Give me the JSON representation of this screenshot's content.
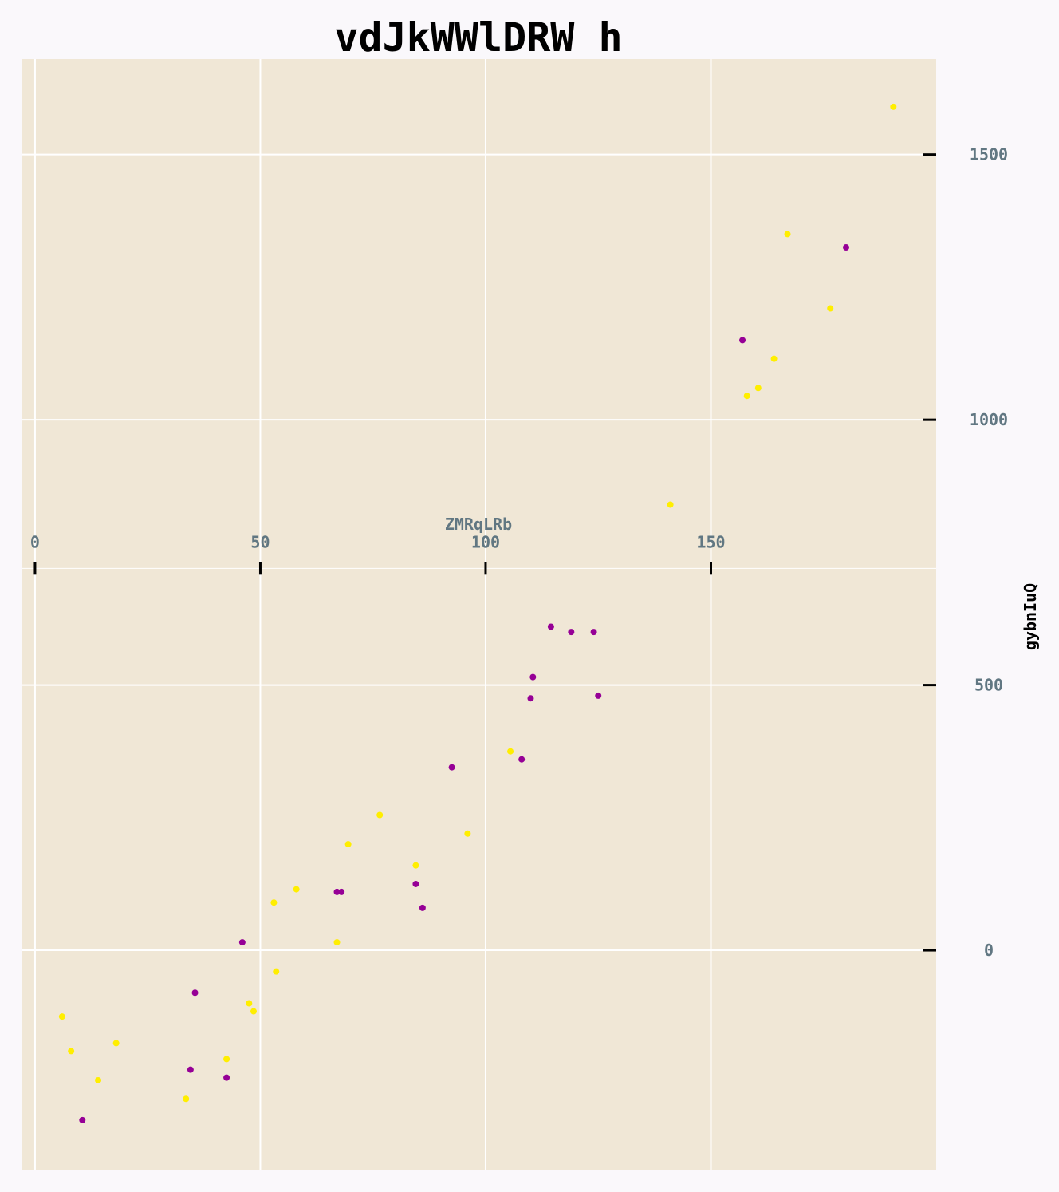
{
  "chart_data": {
    "type": "scatter",
    "title": "vdJkWWlDRW h",
    "xlabel": "ZMRqLRb",
    "ylabel": "gybnIuQ",
    "xlim": [
      -3,
      200
    ],
    "ylim": [
      -415,
      1680
    ],
    "x_ticks": [
      0,
      50,
      100,
      150
    ],
    "y_ticks": [
      0,
      500,
      1000,
      1500
    ],
    "x_axis_position_value": 720,
    "grid": true,
    "colors": {
      "background": "#f0e7d6",
      "page": "#faf8fb",
      "grid": "#ffffff",
      "tick_label": "#617782"
    },
    "series": [
      {
        "color": "#ffee00",
        "points": [
          [
            6,
            -125
          ],
          [
            8,
            -190
          ],
          [
            14,
            -245
          ],
          [
            18,
            -175
          ],
          [
            33.5,
            -280
          ],
          [
            42.5,
            -205
          ],
          [
            47.5,
            -100
          ],
          [
            48.5,
            -115
          ],
          [
            53.5,
            -40
          ],
          [
            53,
            90
          ],
          [
            58,
            115
          ],
          [
            67,
            15
          ],
          [
            69.5,
            200
          ],
          [
            76.5,
            255
          ],
          [
            84.5,
            160
          ],
          [
            96,
            220
          ],
          [
            105.5,
            375
          ],
          [
            141,
            840
          ],
          [
            158,
            1045
          ],
          [
            160.5,
            1060
          ],
          [
            164,
            1115
          ],
          [
            167,
            1350
          ],
          [
            176.5,
            1210
          ],
          [
            190.5,
            1590
          ]
        ]
      },
      {
        "color": "#960096",
        "points": [
          [
            10.5,
            -320
          ],
          [
            34.5,
            -225
          ],
          [
            35.5,
            -80
          ],
          [
            42.5,
            -240
          ],
          [
            46,
            15
          ],
          [
            67,
            110
          ],
          [
            68,
            110
          ],
          [
            84.5,
            125
          ],
          [
            86,
            80
          ],
          [
            92.5,
            345
          ],
          [
            108,
            360
          ],
          [
            110,
            475
          ],
          [
            110.5,
            515
          ],
          [
            114.5,
            610
          ],
          [
            119,
            600
          ],
          [
            124,
            600
          ],
          [
            125,
            480
          ],
          [
            157,
            1150
          ],
          [
            180,
            1325
          ]
        ]
      }
    ]
  }
}
